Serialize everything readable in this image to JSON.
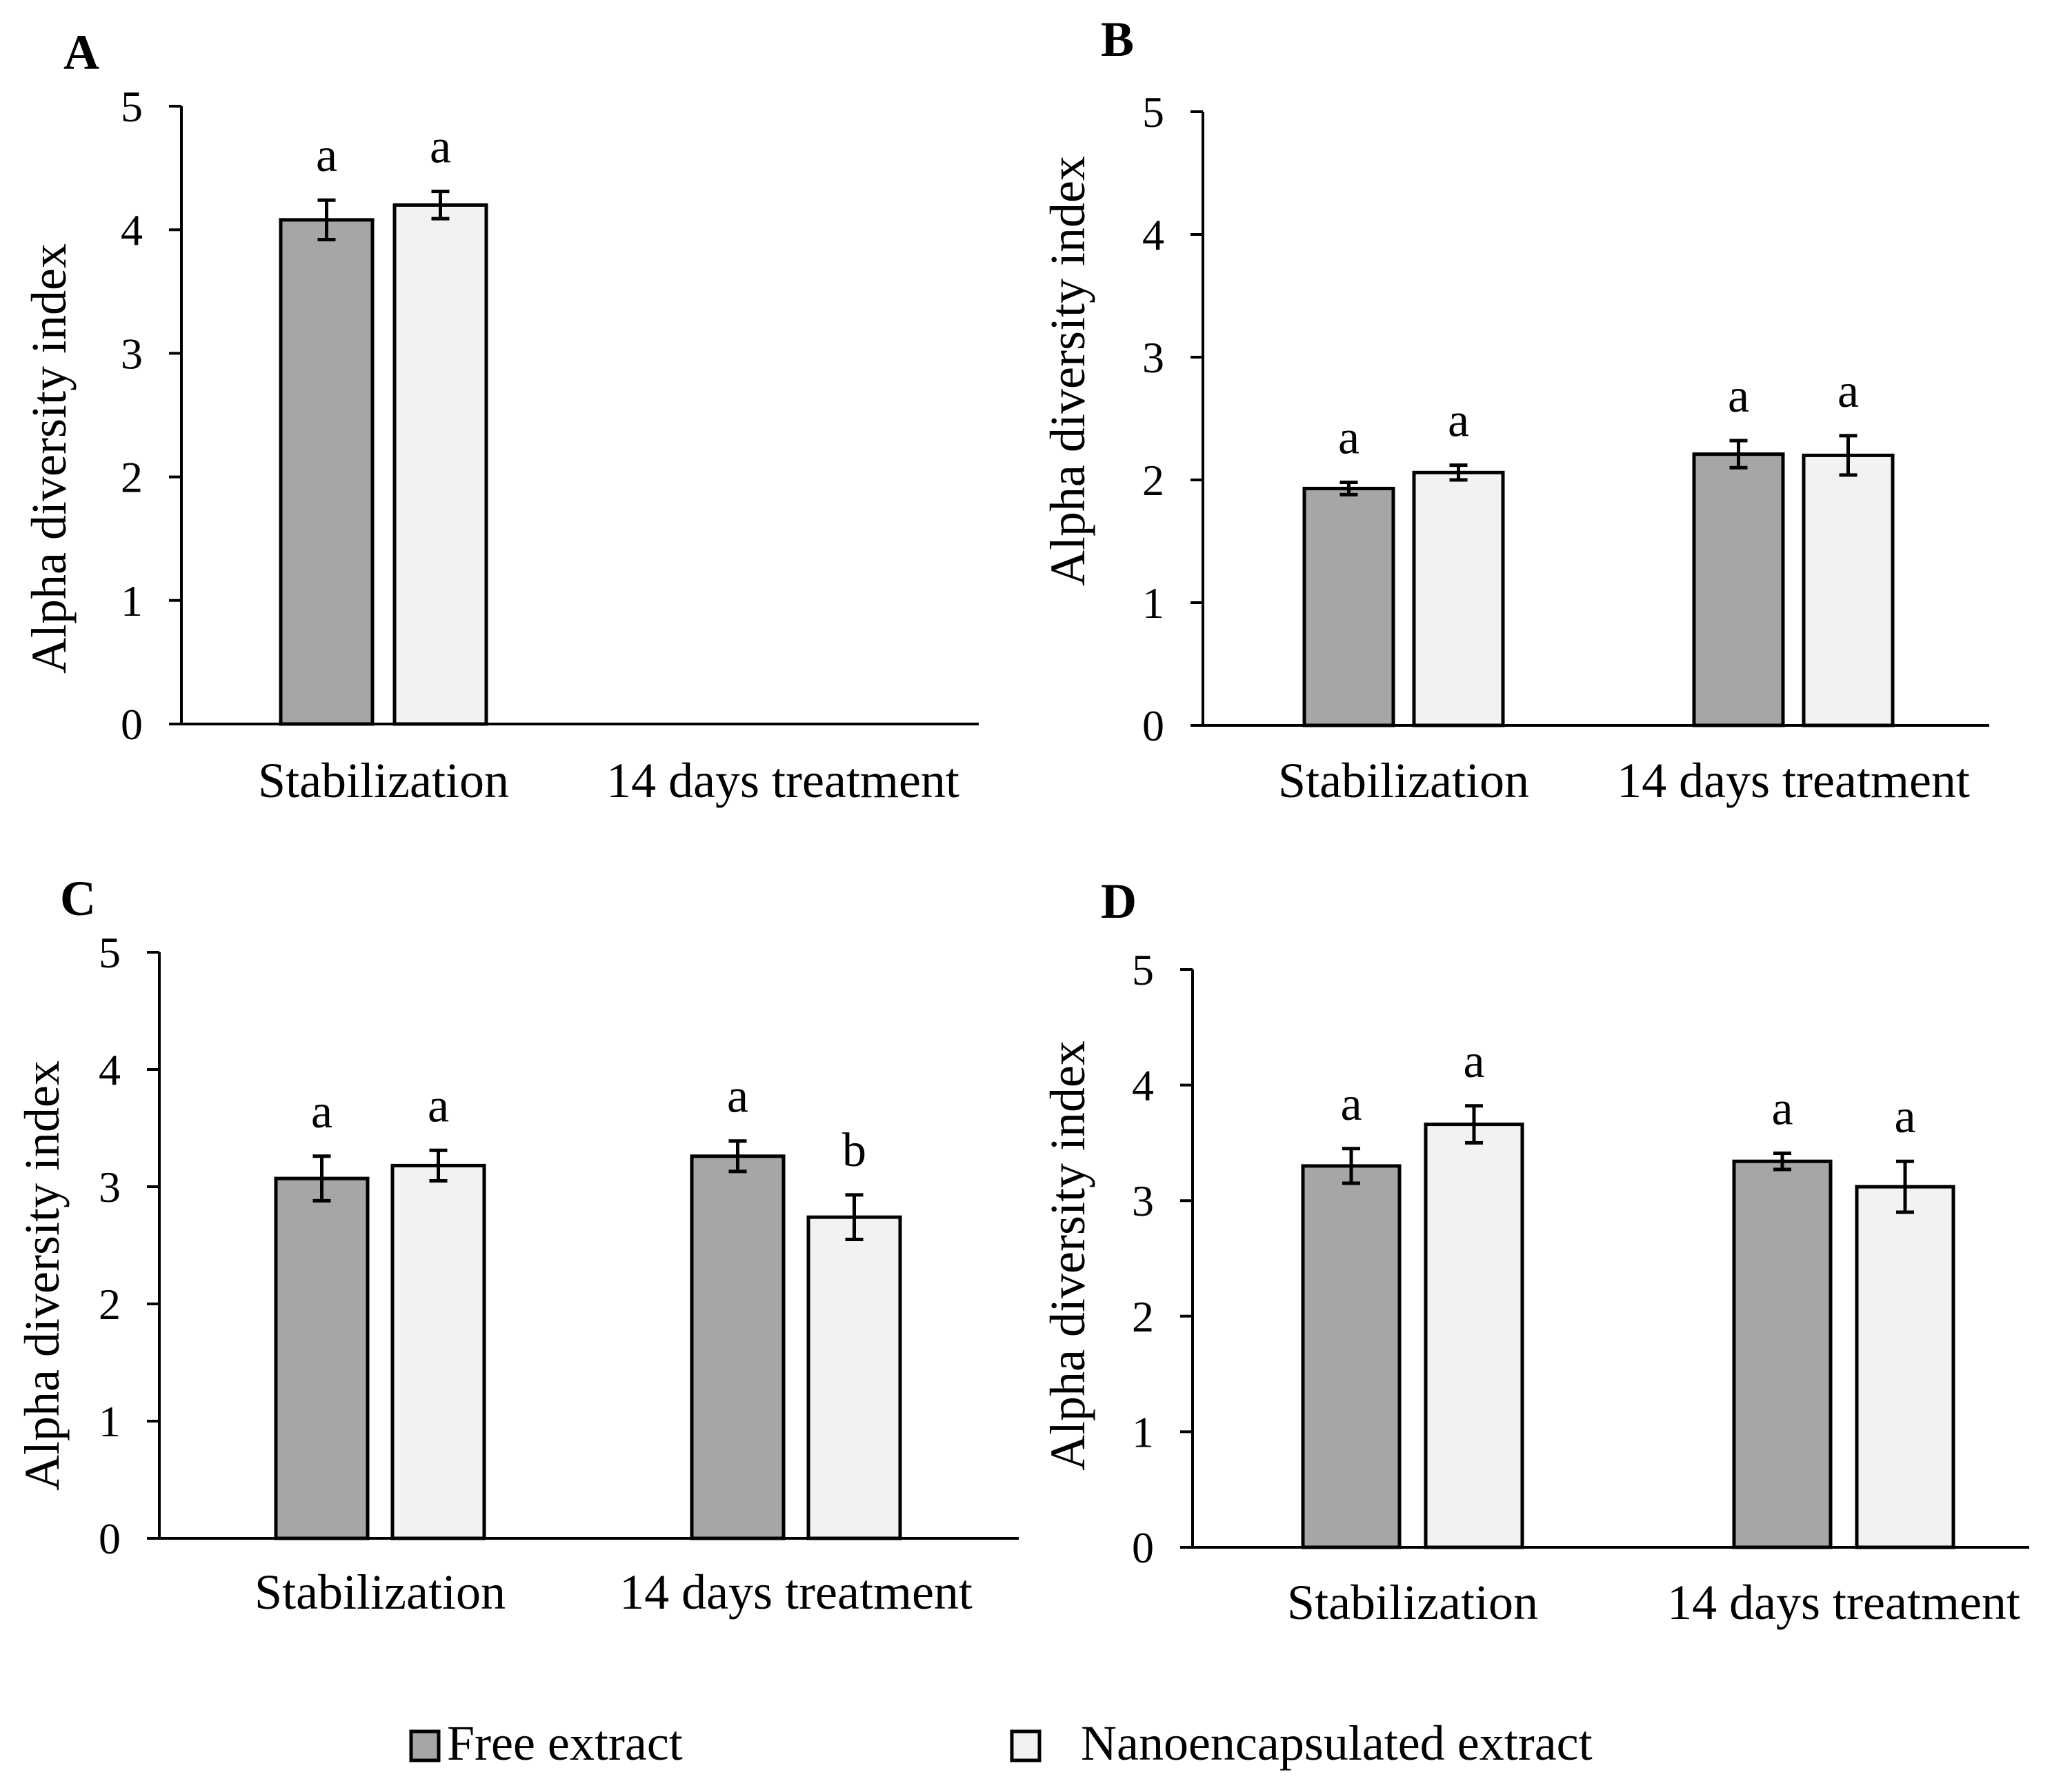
{
  "colors": {
    "free_fill": "#a6a6a6",
    "nano_fill": "#f2f2f2",
    "outline": "#000000",
    "background": "#ffffff"
  },
  "legend": [
    {
      "label": "Free extract"
    },
    {
      "label": "Nanoencapsulated extract"
    }
  ],
  "chart_data": [
    {
      "panel": "A",
      "type": "bar",
      "ylabel": "Alpha diversity index",
      "ylim": [
        0,
        5
      ],
      "yticks": [
        0,
        1,
        2,
        3,
        4,
        5
      ],
      "categories": [
        "Stabilization",
        "14 days treatment"
      ],
      "series": [
        {
          "values": [
            4.08,
            null
          ],
          "errors": [
            0.16,
            null
          ],
          "letters": [
            "a",
            null
          ]
        },
        {
          "values": [
            4.2,
            null
          ],
          "errors": [
            0.11,
            null
          ],
          "letters": [
            "a",
            null
          ]
        }
      ]
    },
    {
      "panel": "B",
      "type": "bar",
      "ylabel": "Alpha diversity index",
      "ylim": [
        0,
        5
      ],
      "yticks": [
        0,
        1,
        2,
        3,
        4,
        5
      ],
      "categories": [
        "Stabilization",
        "14 days treatment"
      ],
      "series": [
        {
          "values": [
            1.93,
            2.21
          ],
          "errors": [
            0.05,
            0.11
          ],
          "letters": [
            "a",
            "a"
          ]
        },
        {
          "values": [
            2.06,
            2.2
          ],
          "errors": [
            0.06,
            0.16
          ],
          "letters": [
            "a",
            "a"
          ]
        }
      ]
    },
    {
      "panel": "C",
      "type": "bar",
      "ylabel": "Alpha diversity index",
      "ylim": [
        0,
        5
      ],
      "yticks": [
        0,
        1,
        2,
        3,
        4,
        5
      ],
      "categories": [
        "Stabilization",
        "14 days treatment"
      ],
      "series": [
        {
          "values": [
            3.07,
            3.26
          ],
          "errors": [
            0.19,
            0.13
          ],
          "letters": [
            "a",
            "a"
          ]
        },
        {
          "values": [
            3.18,
            2.74
          ],
          "errors": [
            0.13,
            0.19
          ],
          "letters": [
            "a",
            "b"
          ]
        }
      ]
    },
    {
      "panel": "D",
      "type": "bar",
      "ylabel": "Alpha diversity index",
      "ylim": [
        0,
        5
      ],
      "yticks": [
        0,
        1,
        2,
        3,
        4,
        5
      ],
      "categories": [
        "Stabilization",
        "14 days treatment"
      ],
      "series": [
        {
          "values": [
            3.3,
            3.34
          ],
          "errors": [
            0.15,
            0.07
          ],
          "letters": [
            "a",
            "a"
          ]
        },
        {
          "values": [
            3.66,
            3.12
          ],
          "errors": [
            0.16,
            0.22
          ],
          "letters": [
            "a",
            "a"
          ]
        }
      ]
    }
  ]
}
